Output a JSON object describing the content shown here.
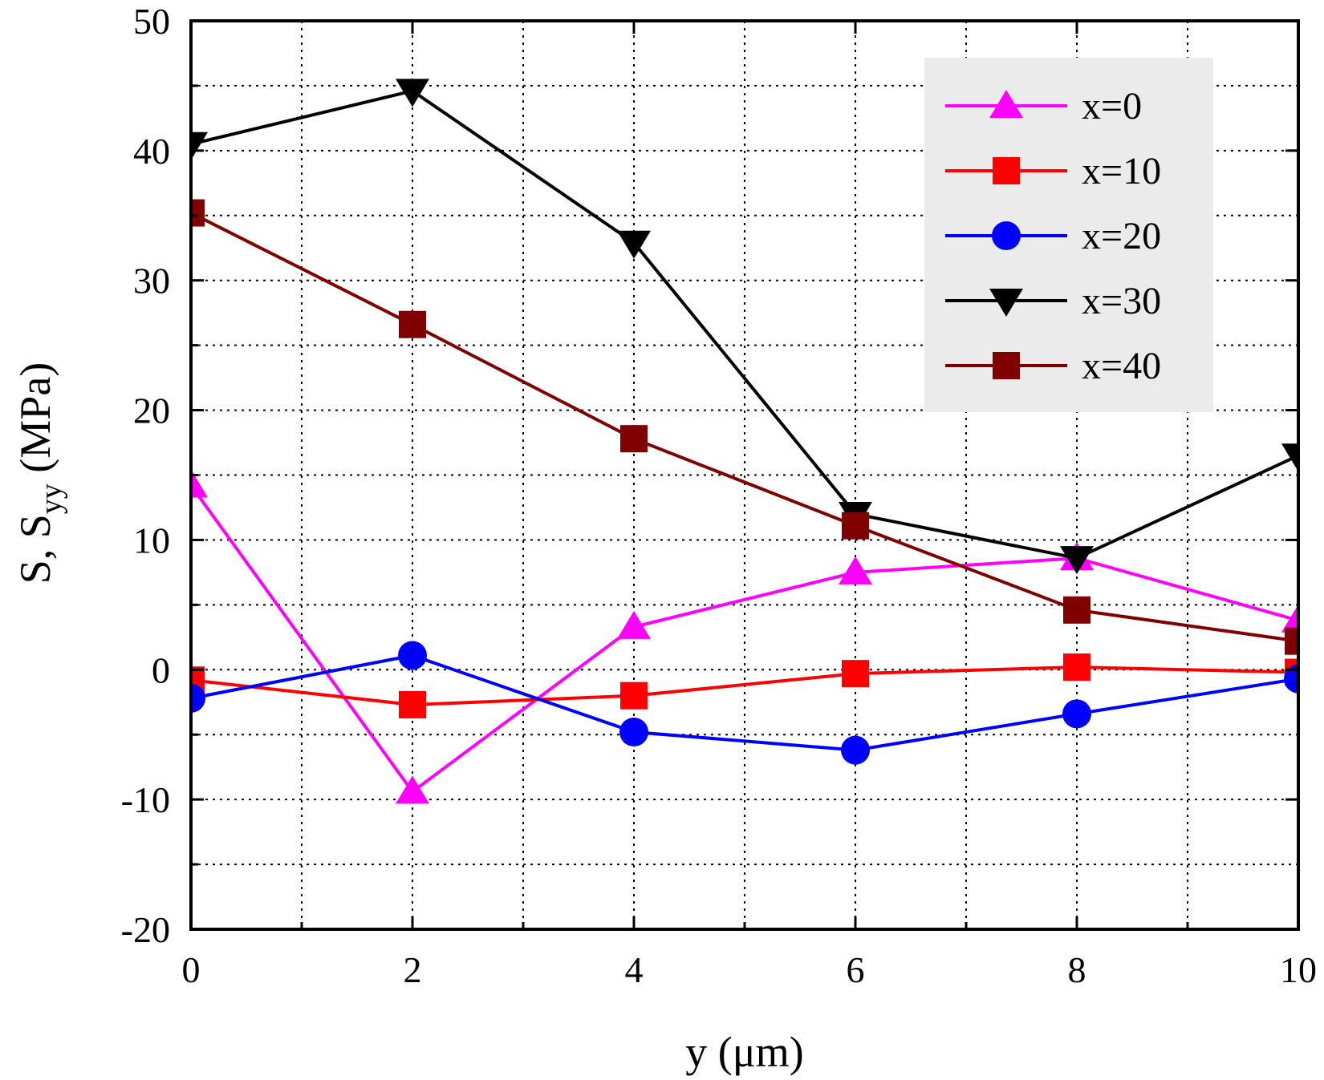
{
  "chart_data": {
    "type": "line",
    "title": "",
    "xlabel": "y (μm)",
    "ylabel_main": "S, S",
    "ylabel_sub": "yy",
    "ylabel_unit": " (MPa)",
    "xlim": [
      0,
      10
    ],
    "ylim": [
      -20,
      50
    ],
    "x_ticks": [
      0,
      2,
      4,
      6,
      8,
      10
    ],
    "x_minor_ticks": [
      1,
      3,
      5,
      7,
      9
    ],
    "y_ticks": [
      -20,
      -10,
      0,
      10,
      20,
      30,
      40,
      50
    ],
    "y_minor_ticks": [
      -15,
      -5,
      5,
      15,
      25,
      35,
      45
    ],
    "grid": true,
    "legend_position": "top-right",
    "x": [
      0,
      2,
      4,
      6,
      8,
      10
    ],
    "series": [
      {
        "name": "x=0",
        "color": "#ff00ff",
        "marker": "triangle-up",
        "values": [
          14.2,
          -9.4,
          3.3,
          7.5,
          8.6,
          3.8
        ]
      },
      {
        "name": "x=10",
        "color": "#ff0000",
        "marker": "square",
        "values": [
          -0.8,
          -2.7,
          -2.0,
          -0.3,
          0.2,
          -0.2
        ]
      },
      {
        "name": "x=20",
        "color": "#0000ff",
        "marker": "circle",
        "values": [
          -2.2,
          1.1,
          -4.8,
          -6.2,
          -3.4,
          -0.7
        ]
      },
      {
        "name": "x=30",
        "color": "#000000",
        "marker": "triangle-down",
        "values": [
          40.5,
          44.6,
          32.9,
          12.0,
          8.6,
          16.5
        ]
      },
      {
        "name": "x=40",
        "color": "#800000",
        "marker": "square",
        "values": [
          35.2,
          26.6,
          17.8,
          11.1,
          4.6,
          2.2
        ]
      }
    ]
  }
}
